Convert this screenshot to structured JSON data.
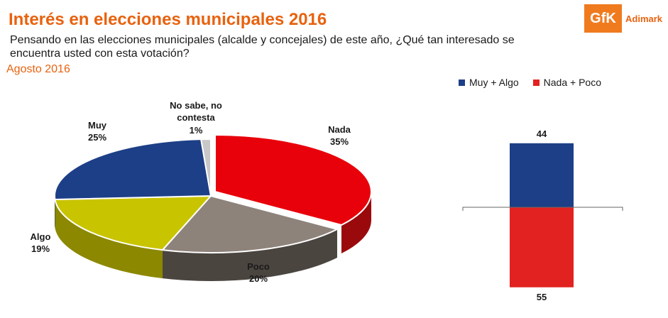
{
  "header": {
    "title": "Interés en elecciones municipales 2016",
    "question": "Pensando en las elecciones municipales (alcalde y concejales) de este año, ¿Qué tan interesado se encuentra usted con esta votación?",
    "period": "Agosto 2016"
  },
  "logo": {
    "mark": "GfK",
    "name": "Adimark"
  },
  "chart_data": [
    {
      "type": "pie",
      "slices": [
        {
          "label": "Nada",
          "value": 35,
          "value_label": "35%",
          "color": "#e8000b",
          "side": "#9a0a0d"
        },
        {
          "label": "Poco",
          "value": 20,
          "value_label": "20%",
          "color": "#8e837b",
          "side": "#4b4540"
        },
        {
          "label": "Algo",
          "value": 19,
          "value_label": "19%",
          "color": "#c9c400",
          "side": "#8c8800"
        },
        {
          "label": "Muy",
          "value": 25,
          "value_label": "25%",
          "color": "#1d3f87",
          "side": "#0f2456"
        },
        {
          "label_lines": [
            "No sabe, no",
            "contesta"
          ],
          "value": 1,
          "value_label": "1%",
          "color": "#c8c8c8",
          "side": "#8a8a8a"
        }
      ]
    },
    {
      "type": "bar",
      "categories": [
        ""
      ],
      "series": [
        {
          "name": "Muy + Algo",
          "values": [
            44
          ],
          "value_label": "44",
          "color": "#1d3f87",
          "label_color": "#1d3f87",
          "direction": "up"
        },
        {
          "name": "Nada + Poco",
          "values": [
            55
          ],
          "value_label": "55",
          "color": "#e22220",
          "label_color": "#e22220",
          "direction": "down"
        }
      ]
    }
  ]
}
